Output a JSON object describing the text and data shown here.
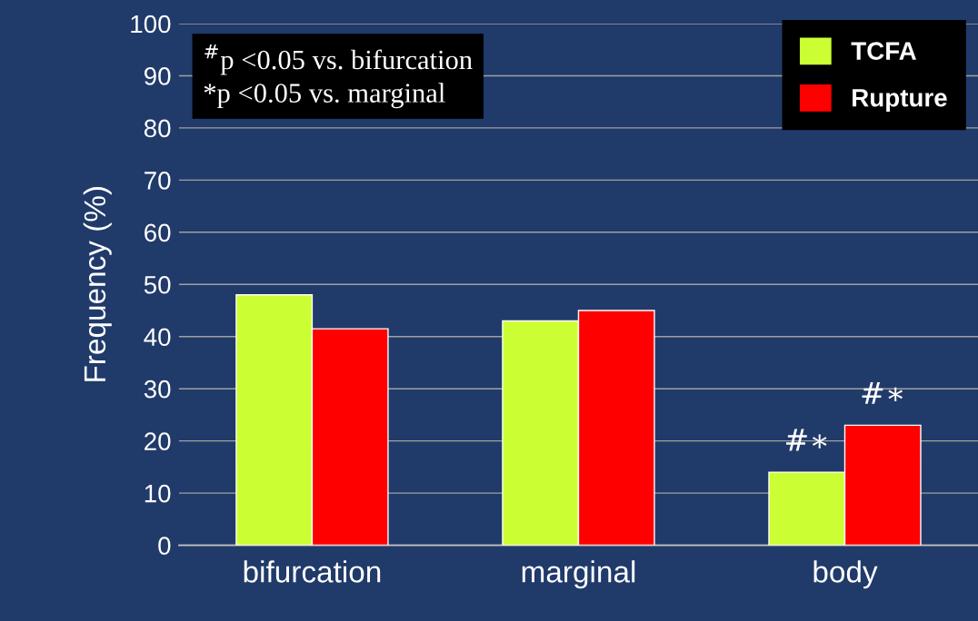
{
  "chart_data": {
    "type": "bar",
    "ylabel": "Frequency (%)",
    "categories": [
      "bifurcation",
      "marginal",
      "body"
    ],
    "series": [
      {
        "name": "TCFA",
        "color": "#ccff33",
        "values": [
          48,
          43,
          14
        ]
      },
      {
        "name": "Rupture",
        "color": "#ff0000",
        "values": [
          41.5,
          45,
          23
        ]
      }
    ],
    "ylim": [
      0,
      100
    ],
    "yticks": [
      0,
      10,
      20,
      30,
      40,
      50,
      60,
      70,
      80,
      90,
      100
    ],
    "grid": "y",
    "legend": "top right",
    "annotations": [
      "$^{#}$p <0.05 vs. bifurcation\n*p <0.05 vs. marginal",
      {
        "text": "#∗",
        "x": "body",
        "y": 14
      },
      {
        "text": "#∗",
        "x": "body",
        "y": 23
      }
    ]
  }
}
